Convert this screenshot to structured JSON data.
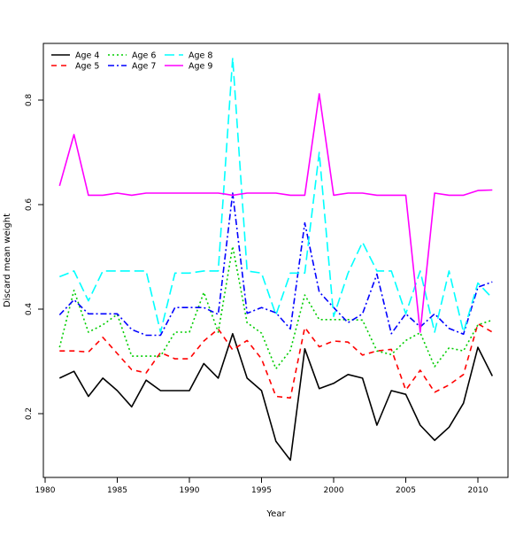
{
  "chart_data": {
    "type": "line",
    "xlabel": "Year",
    "ylabel": "Discard mean weight",
    "xlim": [
      1980,
      2012
    ],
    "ylim": [
      0.1,
      0.9
    ],
    "xticks": [
      1980,
      1985,
      1990,
      1995,
      2000,
      2005,
      2010
    ],
    "yticks": [
      0.2,
      0.4,
      0.6,
      0.8
    ],
    "legend_position": "top-left",
    "grid": false,
    "x": [
      1981,
      1982,
      1983,
      1984,
      1985,
      1986,
      1987,
      1988,
      1989,
      1990,
      1991,
      1992,
      1993,
      1994,
      1995,
      1996,
      1997,
      1998,
      1999,
      2000,
      2001,
      2002,
      2003,
      2004,
      2005,
      2006,
      2007,
      2008,
      2009,
      2010,
      2011
    ],
    "series": [
      {
        "name": "Age 4",
        "color": "#000000",
        "dash": "solid",
        "values": [
          0.268,
          0.281,
          0.233,
          0.268,
          0.244,
          0.213,
          0.264,
          0.244,
          0.244,
          0.244,
          0.296,
          0.268,
          0.353,
          0.268,
          0.244,
          0.147,
          0.111,
          0.324,
          0.248,
          0.258,
          0.275,
          0.268,
          0.178,
          0.244,
          0.237,
          0.178,
          0.149,
          0.174,
          0.22,
          0.327,
          0.272
        ]
      },
      {
        "name": "Age 5",
        "color": "#ff0000",
        "dash": "dashed",
        "values": [
          0.32,
          0.32,
          0.318,
          0.346,
          0.315,
          0.284,
          0.278,
          0.317,
          0.305,
          0.305,
          0.339,
          0.362,
          0.322,
          0.34,
          0.305,
          0.233,
          0.23,
          0.365,
          0.328,
          0.339,
          0.337,
          0.312,
          0.32,
          0.323,
          0.245,
          0.283,
          0.241,
          0.255,
          0.275,
          0.372,
          0.356
        ]
      },
      {
        "name": "Age 6",
        "color": "#00cd00",
        "dash": "dotted",
        "values": [
          0.327,
          0.436,
          0.356,
          0.37,
          0.39,
          0.31,
          0.31,
          0.31,
          0.356,
          0.356,
          0.432,
          0.356,
          0.52,
          0.374,
          0.354,
          0.286,
          0.321,
          0.427,
          0.38,
          0.38,
          0.38,
          0.379,
          0.32,
          0.313,
          0.34,
          0.355,
          0.29,
          0.326,
          0.32,
          0.37,
          0.379
        ]
      },
      {
        "name": "Age 7",
        "color": "#0000ff",
        "dash": "dashdot",
        "values": [
          0.389,
          0.418,
          0.391,
          0.391,
          0.391,
          0.361,
          0.35,
          0.35,
          0.403,
          0.403,
          0.403,
          0.39,
          0.622,
          0.392,
          0.403,
          0.393,
          0.362,
          0.565,
          0.433,
          0.403,
          0.374,
          0.391,
          0.467,
          0.353,
          0.391,
          0.366,
          0.391,
          0.363,
          0.352,
          0.442,
          0.452
        ]
      },
      {
        "name": "Age 8",
        "color": "#00ffff",
        "dash": "longdash",
        "values": [
          0.462,
          0.473,
          0.416,
          0.473,
          0.473,
          0.473,
          0.473,
          0.356,
          0.469,
          0.469,
          0.473,
          0.473,
          0.881,
          0.473,
          0.469,
          0.389,
          0.469,
          0.469,
          0.7,
          0.386,
          0.469,
          0.528,
          0.473,
          0.473,
          0.391,
          0.473,
          0.356,
          0.473,
          0.356,
          0.45,
          0.421
        ]
      },
      {
        "name": "Age 9",
        "color": "#ff00ff",
        "dash": "solid",
        "values": [
          0.636,
          0.734,
          0.618,
          0.618,
          0.622,
          0.618,
          0.622,
          0.622,
          0.622,
          0.622,
          0.622,
          0.622,
          0.618,
          0.622,
          0.622,
          0.622,
          0.618,
          0.618,
          0.812,
          0.618,
          0.622,
          0.622,
          0.618,
          0.618,
          0.618,
          0.356,
          0.622,
          0.618,
          0.618,
          0.627,
          0.628
        ]
      }
    ]
  }
}
